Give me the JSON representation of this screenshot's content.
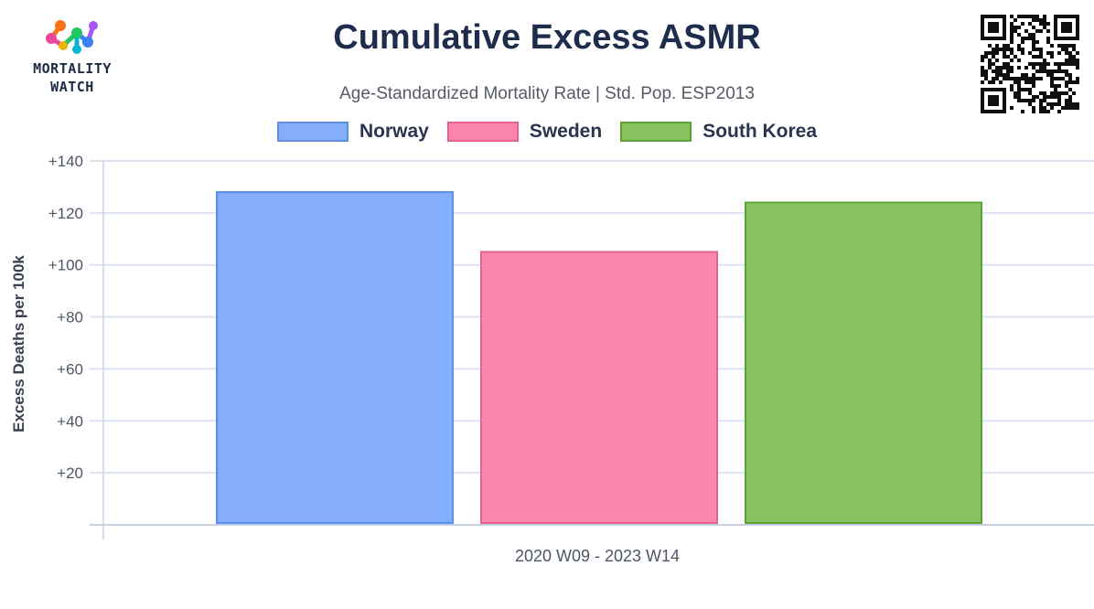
{
  "brand": {
    "line1": "MORTALITY",
    "line2": "WATCH"
  },
  "colors": {
    "norway_fill": "#84adfa",
    "norway_stroke": "#5b8ee6",
    "sweden_fill": "#fd86b0",
    "sweden_stroke": "#e5628f",
    "korea_fill": "#86c25d",
    "korea_stroke": "#5da33a",
    "grid": "#dde3f3",
    "axis_text": "#4d5566"
  },
  "chart_data": {
    "type": "bar",
    "title": "Cumulative Excess ASMR",
    "subtitle": "Age-Standardized Mortality Rate | Std. Pop. ESP2013",
    "xlabel": "2020 W09 - 2023 W14",
    "ylabel": "Excess Deaths per 100k",
    "categories": [
      "2020 W09 - 2023 W14"
    ],
    "series": [
      {
        "name": "Norway",
        "values": [
          128
        ]
      },
      {
        "name": "Sweden",
        "values": [
          105
        ]
      },
      {
        "name": "South Korea",
        "values": [
          124
        ]
      }
    ],
    "ylim": [
      0,
      140
    ],
    "yticks": [
      20,
      40,
      60,
      80,
      100,
      120,
      140
    ],
    "ytick_labels": [
      "+20",
      "+40",
      "+60",
      "+80",
      "+100",
      "+120",
      "+140"
    ],
    "grid": true,
    "legend_position": "top-center"
  }
}
